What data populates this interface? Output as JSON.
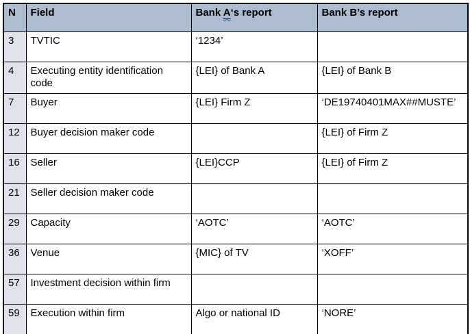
{
  "header": {
    "col_n": "N",
    "col_field": "Field",
    "col_bank_a": {
      "prefix": "Bank ",
      "underlined": "A",
      "suffix": "‘s report"
    },
    "col_bank_b": "Bank B’s report"
  },
  "rows": [
    {
      "n": "3",
      "field": "TVTIC",
      "bank_a": "‘1234’",
      "bank_b": ""
    },
    {
      "n": "4",
      "field": "Executing entity identification code",
      "bank_a": "{LEI} of Bank A",
      "bank_b": "{LEI} of Bank B"
    },
    {
      "n": "7",
      "field": "Buyer",
      "bank_a": "{LEI} Firm Z",
      "bank_b": "‘DE19740401MAX##MUSTE’"
    },
    {
      "n": "12",
      "field": "Buyer decision maker code",
      "bank_a": "",
      "bank_b": "{LEI} of Firm Z"
    },
    {
      "n": "16",
      "field": "Seller",
      "bank_a": "{LEI}CCP",
      "bank_b": "{LEI} of Firm Z"
    },
    {
      "n": "21",
      "field": "Seller decision maker code",
      "bank_a": "",
      "bank_b": ""
    },
    {
      "n": "29",
      "field": "Capacity",
      "bank_a": "‘AOTC’",
      "bank_b": "‘AOTC’"
    },
    {
      "n": "36",
      "field": "Venue",
      "bank_a": "{MIC} of TV",
      "bank_b": "‘XOFF’"
    },
    {
      "n": "57",
      "field": "Investment decision within firm",
      "bank_a": "",
      "bank_b": ""
    },
    {
      "n": "59",
      "field": "Execution within firm",
      "bank_a": "Algo or national ID",
      "bank_b": "‘NORE’"
    }
  ],
  "colors": {
    "header_bg": "#aebcd0",
    "n_column_bg": "#dee2ea",
    "border": "#000000",
    "spellcheck_squiggle": "#2b5fd9"
  }
}
